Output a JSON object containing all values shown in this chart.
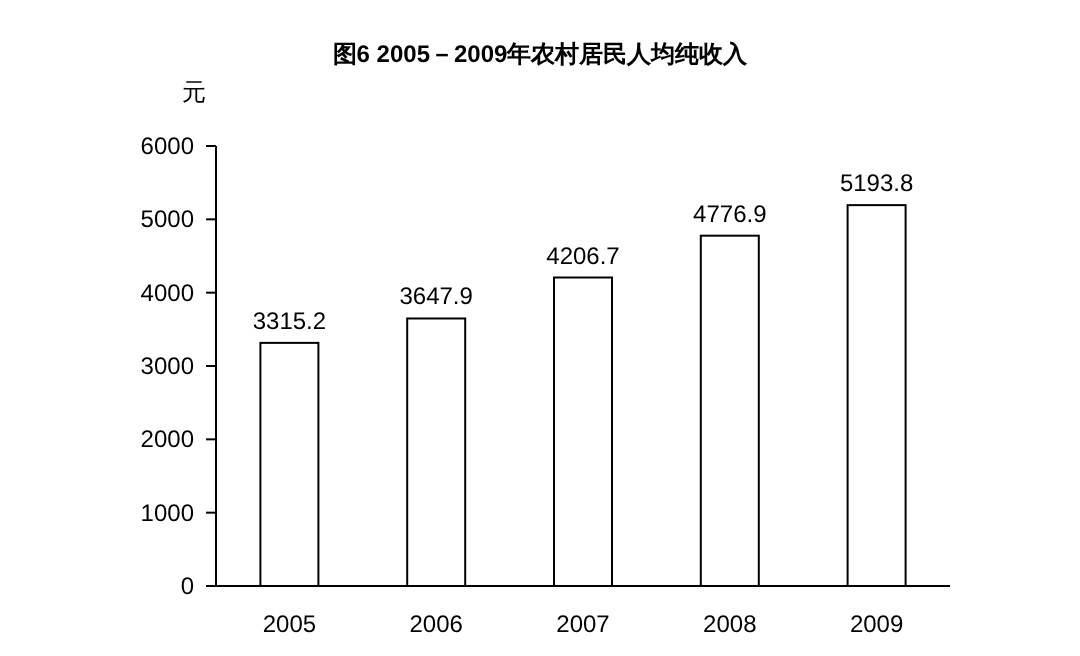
{
  "chart_data": {
    "type": "bar",
    "title": "图6  2005－2009年农村居民人均纯收入",
    "ylabel": "元",
    "categories": [
      "2005",
      "2006",
      "2007",
      "2008",
      "2009"
    ],
    "values": [
      3315.2,
      3647.9,
      4206.7,
      4776.9,
      5193.8
    ],
    "color": "#ffffff",
    "ylim": [
      0,
      6000
    ],
    "yticks": [
      0,
      1000,
      2000,
      3000,
      4000,
      5000,
      6000
    ],
    "data_labels": true,
    "grid": false
  }
}
